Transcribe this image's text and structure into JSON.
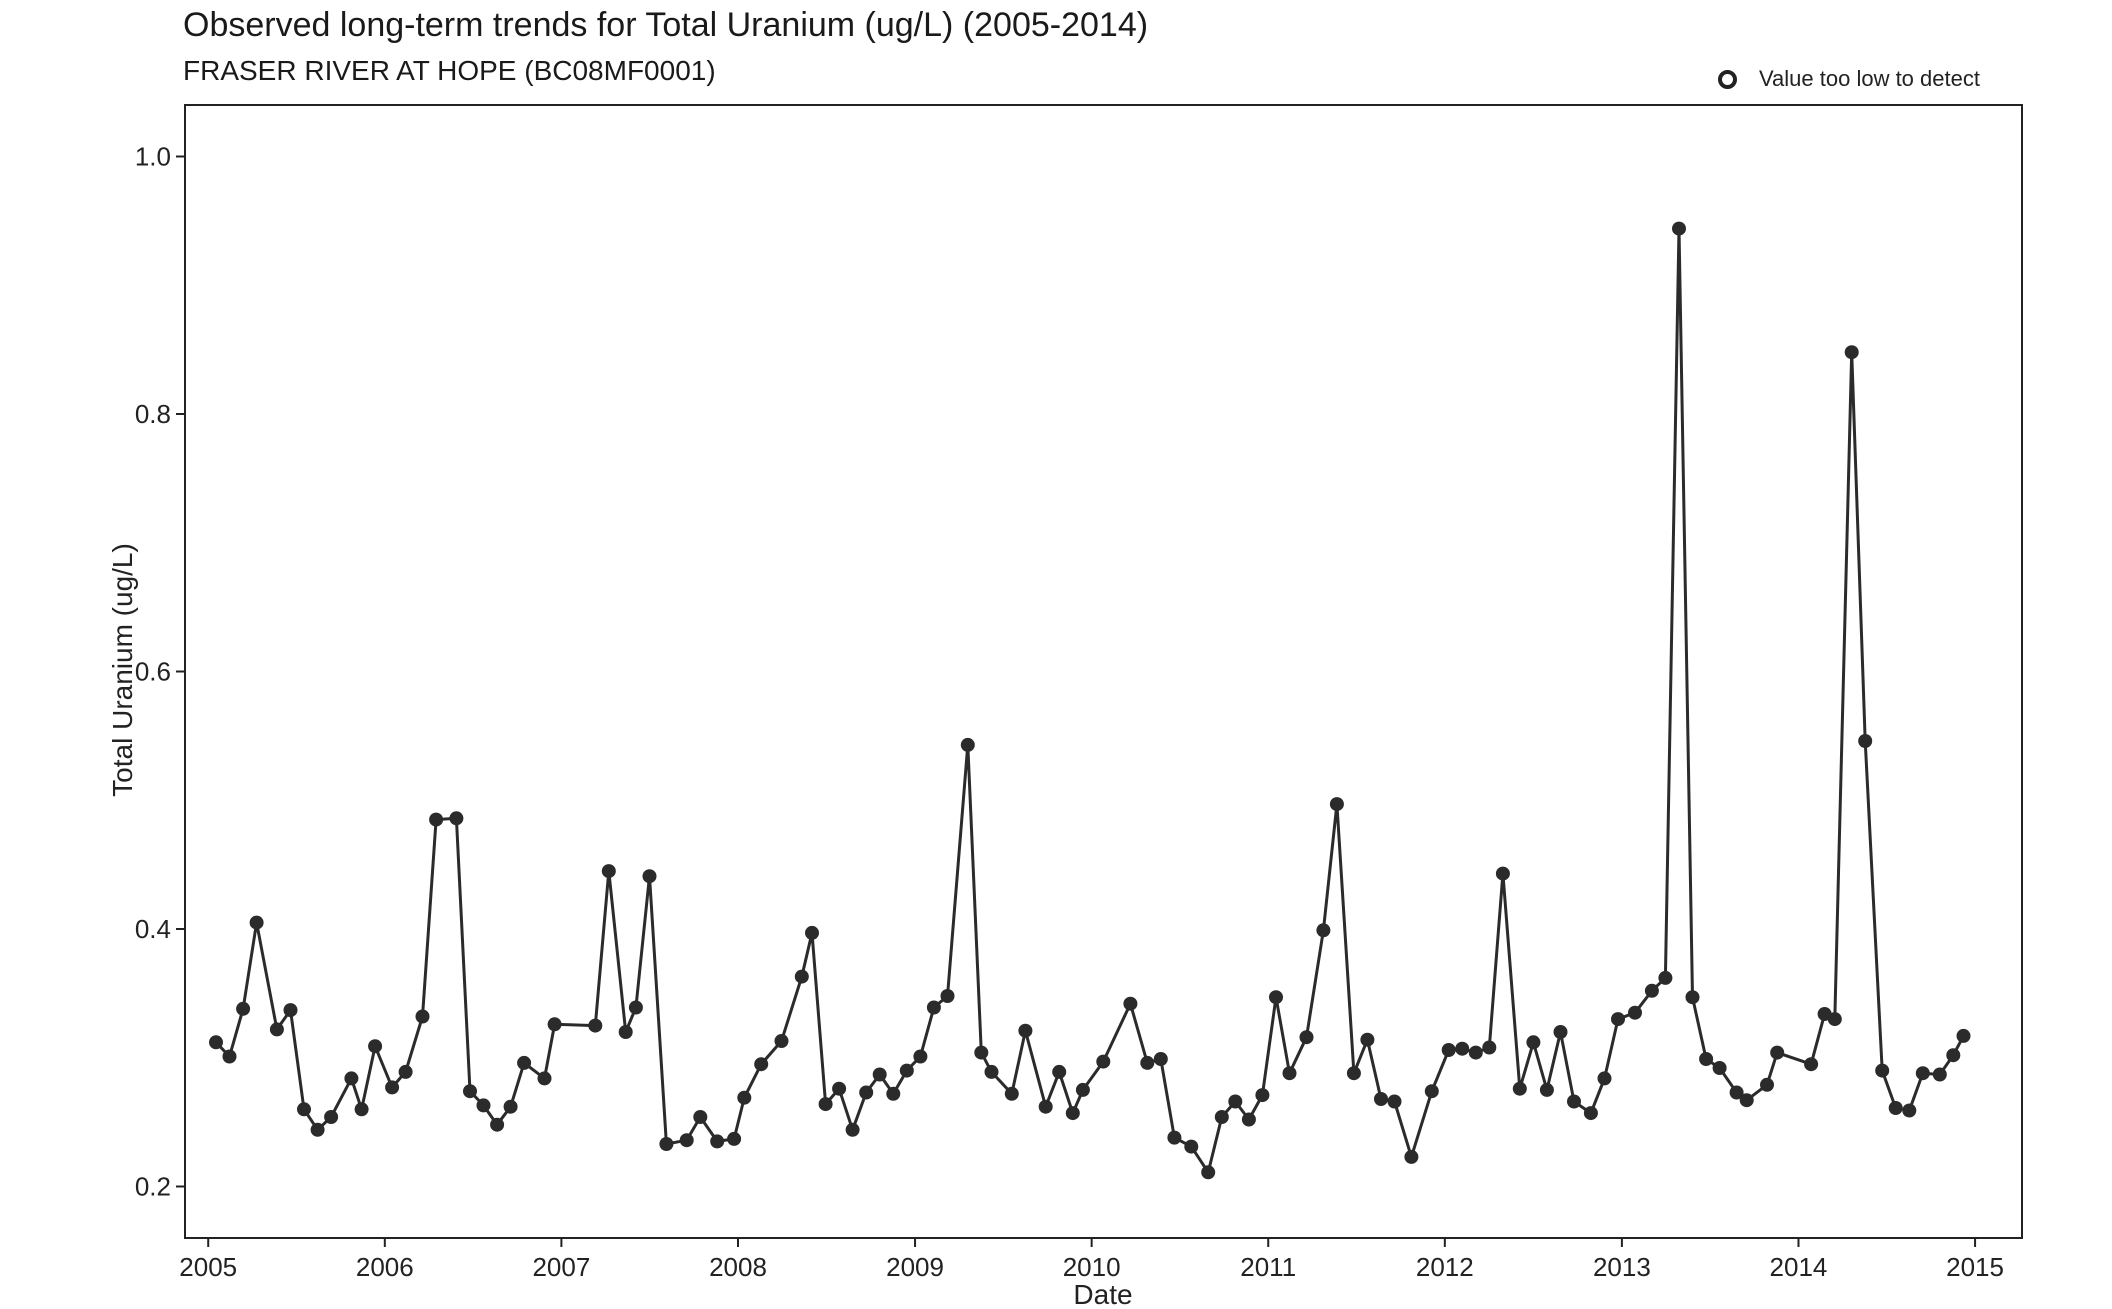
{
  "chart_data": {
    "type": "line",
    "title": "Observed long-term trends for Total Uranium (ug/L) (2005-2014)",
    "subtitle": "FRASER RIVER AT HOPE (BC08MF0001)",
    "xlabel": "Date",
    "ylabel": "Total Uranium (ug/L)",
    "xlim": [
      "2004-11-14",
      "2015-04-08"
    ],
    "ylim": [
      0.16,
      1.04
    ],
    "x_ticks": [
      "2005",
      "2006",
      "2007",
      "2008",
      "2009",
      "2010",
      "2011",
      "2012",
      "2013",
      "2014",
      "2015"
    ],
    "y_ticks": [
      "0.2",
      "0.4",
      "0.6",
      "0.8",
      "1.0"
    ],
    "legend": {
      "label": "Value too low to detect",
      "marker": "open-circle",
      "position": "top-right"
    },
    "grid": false,
    "colors": {
      "series": "#2b2b2b",
      "axis": "#222222"
    },
    "series": [
      {
        "points": [
          [
            "2005-01-17",
            0.312
          ],
          [
            "2005-02-14",
            0.301
          ],
          [
            "2005-03-14",
            0.338
          ],
          [
            "2005-04-11",
            0.405
          ],
          [
            "2005-05-23",
            0.322
          ],
          [
            "2005-06-20",
            0.337
          ],
          [
            "2005-07-18",
            0.26
          ],
          [
            "2005-08-15",
            0.244
          ],
          [
            "2005-09-12",
            0.254
          ],
          [
            "2005-10-24",
            0.284
          ],
          [
            "2005-11-14",
            0.26
          ],
          [
            "2005-12-12",
            0.309
          ],
          [
            "2006-01-16",
            0.277
          ],
          [
            "2006-02-13",
            0.289
          ],
          [
            "2006-03-20",
            0.332
          ],
          [
            "2006-04-17",
            0.485
          ],
          [
            "2006-05-29",
            0.486
          ],
          [
            "2006-06-26",
            0.274
          ],
          [
            "2006-07-24",
            0.263
          ],
          [
            "2006-08-21",
            0.248
          ],
          [
            "2006-09-18",
            0.262
          ],
          [
            "2006-10-16",
            0.296
          ],
          [
            "2006-11-27",
            0.284
          ],
          [
            "2006-12-18",
            0.326
          ],
          [
            "2007-03-12",
            0.325
          ],
          [
            "2007-04-09",
            0.445
          ],
          [
            "2007-05-14",
            0.32
          ],
          [
            "2007-06-04",
            0.339
          ],
          [
            "2007-07-02",
            0.441
          ],
          [
            "2007-08-06",
            0.233
          ],
          [
            "2007-09-17",
            0.236
          ],
          [
            "2007-10-15",
            0.254
          ],
          [
            "2007-11-19",
            0.235
          ],
          [
            "2007-12-24",
            0.237
          ],
          [
            "2008-01-14",
            0.269
          ],
          [
            "2008-02-18",
            0.295
          ],
          [
            "2008-03-31",
            0.313
          ],
          [
            "2008-05-12",
            0.363
          ],
          [
            "2008-06-02",
            0.397
          ],
          [
            "2008-06-30",
            0.264
          ],
          [
            "2008-07-28",
            0.276
          ],
          [
            "2008-08-25",
            0.244
          ],
          [
            "2008-09-22",
            0.273
          ],
          [
            "2008-10-20",
            0.287
          ],
          [
            "2008-11-17",
            0.272
          ],
          [
            "2008-12-15",
            0.29
          ],
          [
            "2009-01-12",
            0.301
          ],
          [
            "2009-02-09",
            0.339
          ],
          [
            "2009-03-09",
            0.348
          ],
          [
            "2009-04-20",
            0.543
          ],
          [
            "2009-05-18",
            0.304
          ],
          [
            "2009-06-08",
            0.289
          ],
          [
            "2009-07-20",
            0.272
          ],
          [
            "2009-08-17",
            0.321
          ],
          [
            "2009-09-28",
            0.262
          ],
          [
            "2009-10-26",
            0.289
          ],
          [
            "2009-11-23",
            0.257
          ],
          [
            "2009-12-14",
            0.275
          ],
          [
            "2010-01-25",
            0.297
          ],
          [
            "2010-03-22",
            0.342
          ],
          [
            "2010-04-26",
            0.296
          ],
          [
            "2010-05-24",
            0.299
          ],
          [
            "2010-06-21",
            0.238
          ],
          [
            "2010-07-26",
            0.231
          ],
          [
            "2010-08-30",
            0.211
          ],
          [
            "2010-09-27",
            0.254
          ],
          [
            "2010-10-25",
            0.266
          ],
          [
            "2010-11-22",
            0.252
          ],
          [
            "2010-12-20",
            0.271
          ],
          [
            "2011-01-17",
            0.347
          ],
          [
            "2011-02-14",
            0.288
          ],
          [
            "2011-03-21",
            0.316
          ],
          [
            "2011-04-25",
            0.399
          ],
          [
            "2011-05-23",
            0.497
          ],
          [
            "2011-06-27",
            0.288
          ],
          [
            "2011-07-25",
            0.314
          ],
          [
            "2011-08-22",
            0.268
          ],
          [
            "2011-09-19",
            0.266
          ],
          [
            "2011-10-24",
            0.223
          ],
          [
            "2011-12-05",
            0.274
          ],
          [
            "2012-01-09",
            0.306
          ],
          [
            "2012-02-06",
            0.307
          ],
          [
            "2012-03-05",
            0.304
          ],
          [
            "2012-04-02",
            0.308
          ],
          [
            "2012-04-30",
            0.443
          ],
          [
            "2012-06-04",
            0.276
          ],
          [
            "2012-07-02",
            0.312
          ],
          [
            "2012-07-30",
            0.275
          ],
          [
            "2012-08-27",
            0.32
          ],
          [
            "2012-09-24",
            0.266
          ],
          [
            "2012-10-29",
            0.257
          ],
          [
            "2012-11-26",
            0.284
          ],
          [
            "2012-12-24",
            0.33
          ],
          [
            "2013-01-28",
            0.335
          ],
          [
            "2013-03-04",
            0.352
          ],
          [
            "2013-04-01",
            0.362
          ],
          [
            "2013-04-29",
            0.944
          ],
          [
            "2013-05-27",
            0.347
          ],
          [
            "2013-06-24",
            0.299
          ],
          [
            "2013-07-22",
            0.292
          ],
          [
            "2013-08-26",
            0.273
          ],
          [
            "2013-09-16",
            0.267
          ],
          [
            "2013-10-28",
            0.279
          ],
          [
            "2013-11-18",
            0.304
          ],
          [
            "2014-01-27",
            0.295
          ],
          [
            "2014-02-24",
            0.334
          ],
          [
            "2014-03-17",
            0.33
          ],
          [
            "2014-04-21",
            0.848
          ],
          [
            "2014-05-19",
            0.546
          ],
          [
            "2014-06-23",
            0.29
          ],
          [
            "2014-07-21",
            0.261
          ],
          [
            "2014-08-18",
            0.259
          ],
          [
            "2014-09-15",
            0.288
          ],
          [
            "2014-10-20",
            0.287
          ],
          [
            "2014-11-17",
            0.302
          ],
          [
            "2014-12-08",
            0.317
          ]
        ]
      }
    ]
  }
}
